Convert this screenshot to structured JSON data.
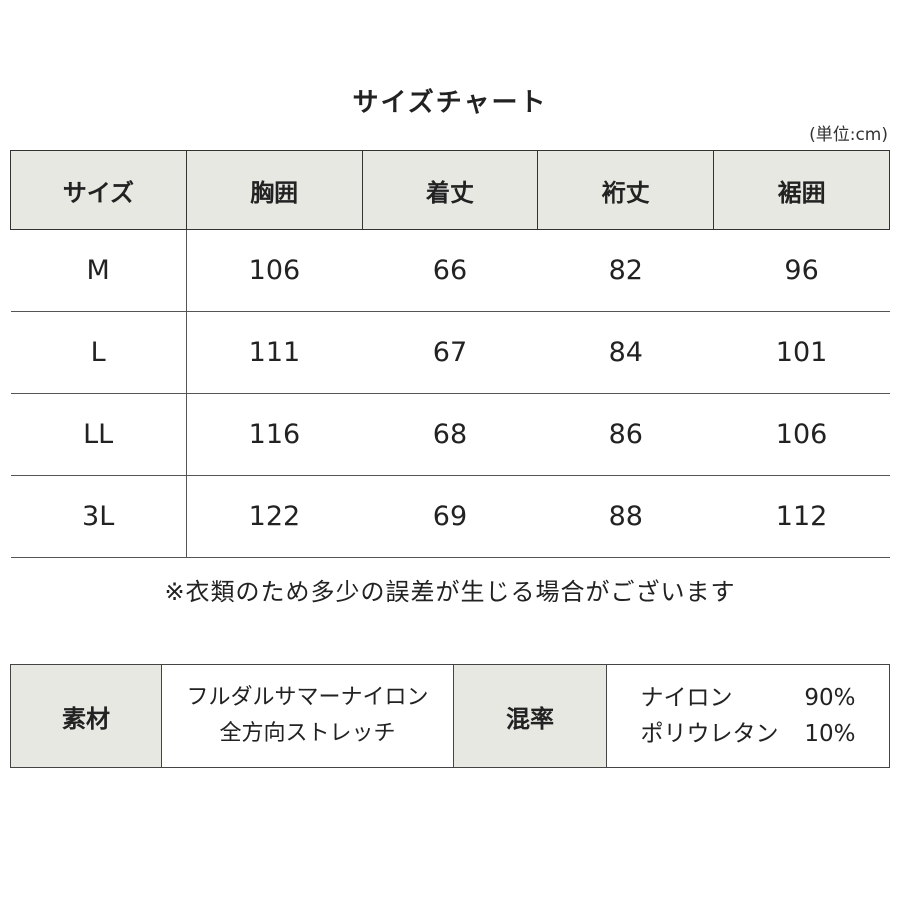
{
  "title": "サイズチャート",
  "unit": "(単位:cm)",
  "size_table": {
    "headers": [
      "サイズ",
      "胸囲",
      "着丈",
      "裄丈",
      "裾囲"
    ],
    "rows": [
      [
        "M",
        "106",
        "66",
        "82",
        "96"
      ],
      [
        "L",
        "111",
        "67",
        "84",
        "101"
      ],
      [
        "LL",
        "116",
        "68",
        "86",
        "106"
      ],
      [
        "3L",
        "122",
        "69",
        "88",
        "112"
      ]
    ]
  },
  "note": "※衣類のため多少の誤差が生じる場合がございます",
  "material_table": {
    "material_label": "素材",
    "material_lines": [
      "フルダルサマーナイロン",
      "全方向ストレッチ"
    ],
    "blend_label": "混率",
    "blend": [
      {
        "fiber": "ナイロン",
        "percent": "90%"
      },
      {
        "fiber": "ポリウレタン",
        "percent": "10%"
      }
    ]
  },
  "colors": {
    "header_bg": "#e8e8e3",
    "border": "#333333"
  }
}
